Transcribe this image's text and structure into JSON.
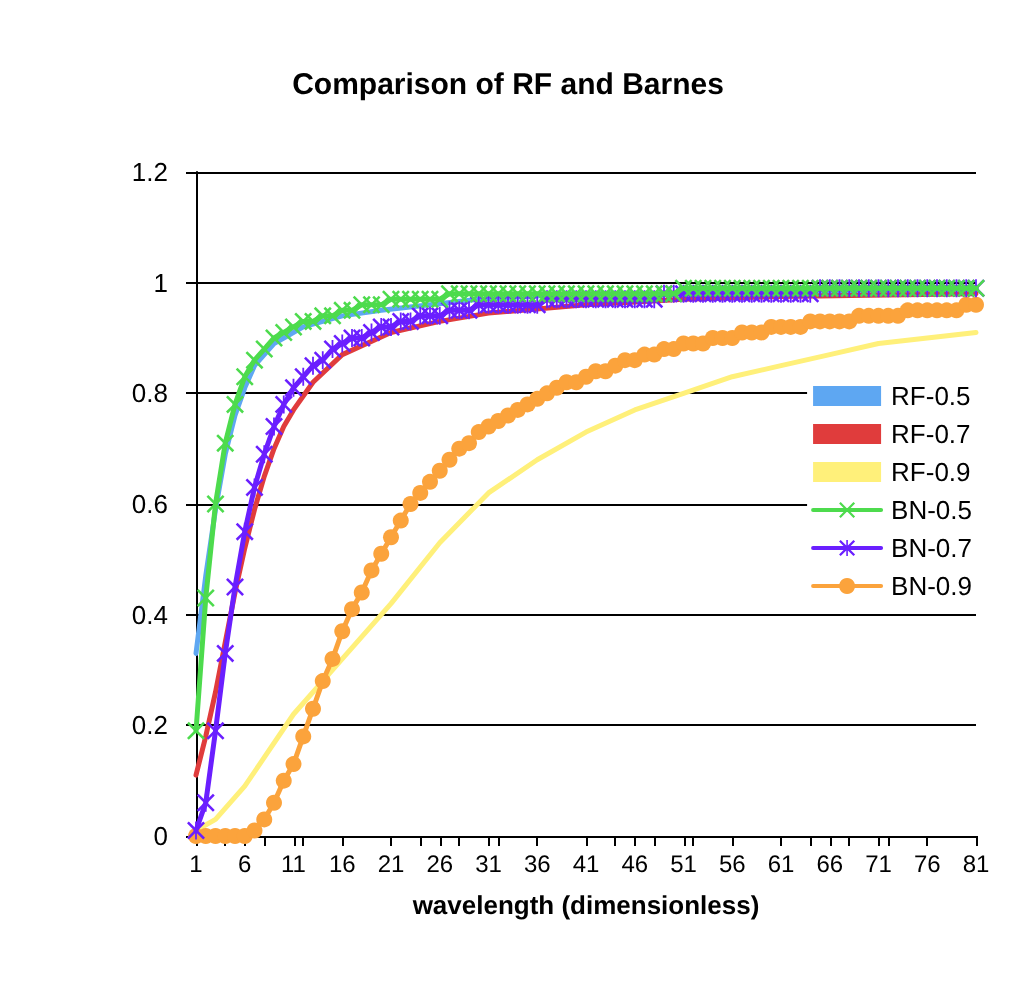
{
  "chart_data": {
    "type": "line",
    "title": "Comparison of RF and Barnes",
    "xlabel": "wavelength (dimensionless)",
    "xlim": [
      1,
      81
    ],
    "xticks": [
      1,
      6,
      11,
      16,
      21,
      26,
      31,
      36,
      41,
      46,
      51,
      56,
      61,
      66,
      71,
      76,
      81
    ],
    "ylim": [
      0,
      1.2
    ],
    "yticks": [
      0,
      0.2,
      0.4,
      0.6,
      0.8,
      1,
      1.2
    ],
    "grid": "y",
    "legend": "right",
    "line_style": "solid",
    "series": [
      {
        "name": "RF-0.5",
        "color": "#5ea7f2",
        "marker": "none",
        "x": [
          1,
          2,
          3,
          4,
          5,
          6,
          7,
          8,
          9,
          10,
          12,
          14,
          16,
          20,
          25,
          30,
          40,
          60,
          81
        ],
        "values": [
          0.33,
          0.47,
          0.59,
          0.69,
          0.76,
          0.81,
          0.85,
          0.87,
          0.89,
          0.9,
          0.92,
          0.93,
          0.94,
          0.95,
          0.96,
          0.97,
          0.98,
          0.98,
          0.99
        ]
      },
      {
        "name": "RF-0.7",
        "color": "#e03c3c",
        "marker": "none",
        "x": [
          1,
          2,
          3,
          4,
          5,
          6,
          7,
          8,
          9,
          10,
          11,
          13,
          16,
          21,
          26,
          31,
          41,
          51,
          61,
          81
        ],
        "values": [
          0.11,
          0.18,
          0.26,
          0.35,
          0.44,
          0.52,
          0.59,
          0.65,
          0.7,
          0.74,
          0.77,
          0.82,
          0.87,
          0.91,
          0.93,
          0.945,
          0.96,
          0.97,
          0.975,
          0.98
        ]
      },
      {
        "name": "RF-0.9",
        "color": "#fff07a",
        "marker": "none",
        "x": [
          1,
          3,
          6,
          11,
          16,
          21,
          26,
          31,
          36,
          41,
          46,
          51,
          56,
          61,
          66,
          71,
          76,
          81
        ],
        "values": [
          0.01,
          0.03,
          0.09,
          0.22,
          0.32,
          0.42,
          0.53,
          0.62,
          0.68,
          0.73,
          0.77,
          0.8,
          0.83,
          0.85,
          0.87,
          0.89,
          0.9,
          0.91
        ]
      },
      {
        "name": "BN-0.5",
        "color": "#4ddb4d",
        "marker": "cross",
        "x": [
          1,
          2,
          3,
          4,
          5,
          6,
          7,
          8,
          9,
          10,
          11,
          12,
          13,
          14,
          15,
          16,
          17,
          18,
          19,
          20,
          21,
          22,
          23,
          24,
          25,
          26,
          27,
          28,
          29,
          30,
          31,
          32,
          33,
          34,
          35,
          36,
          37,
          38,
          39,
          40,
          41,
          42,
          43,
          44,
          45,
          46,
          47,
          48,
          49,
          50,
          51,
          52,
          53,
          54,
          55,
          56,
          57,
          58,
          59,
          60,
          61,
          62,
          63,
          64,
          65,
          66,
          67,
          68,
          69,
          70,
          71,
          72,
          73,
          74,
          75,
          76,
          77,
          78,
          79,
          80,
          81
        ],
        "values": [
          0.19,
          0.43,
          0.6,
          0.71,
          0.78,
          0.83,
          0.86,
          0.88,
          0.9,
          0.91,
          0.92,
          0.93,
          0.93,
          0.94,
          0.94,
          0.95,
          0.95,
          0.96,
          0.96,
          0.96,
          0.97,
          0.97,
          0.97,
          0.97,
          0.97,
          0.97,
          0.98,
          0.98,
          0.98,
          0.98,
          0.98,
          0.98,
          0.98,
          0.98,
          0.98,
          0.98,
          0.98,
          0.98,
          0.98,
          0.98,
          0.98,
          0.98,
          0.98,
          0.98,
          0.98,
          0.98,
          0.98,
          0.98,
          0.98,
          0.98,
          0.99,
          0.99,
          0.99,
          0.99,
          0.99,
          0.99,
          0.99,
          0.99,
          0.99,
          0.99,
          0.99,
          0.99,
          0.99,
          0.99,
          0.99,
          0.99,
          0.99,
          0.99,
          0.99,
          0.99,
          0.99,
          0.99,
          0.99,
          0.99,
          0.99,
          0.99,
          0.99,
          0.99,
          0.99,
          0.99,
          0.99
        ]
      },
      {
        "name": "BN-0.7",
        "color": "#6a1fff",
        "marker": "star",
        "x": [
          1,
          2,
          3,
          4,
          5,
          6,
          7,
          8,
          9,
          10,
          11,
          12,
          13,
          14,
          15,
          16,
          17,
          18,
          19,
          20,
          21,
          22,
          23,
          24,
          25,
          26,
          27,
          28,
          29,
          30,
          31,
          32,
          33,
          34,
          35,
          36,
          37,
          38,
          39,
          40,
          41,
          42,
          43,
          44,
          45,
          46,
          47,
          48,
          49,
          50,
          51,
          52,
          53,
          54,
          55,
          56,
          57,
          58,
          59,
          60,
          61,
          62,
          63,
          64,
          65,
          66,
          67,
          68,
          69,
          70,
          71,
          72,
          73,
          74,
          75,
          76,
          77,
          78,
          79,
          80,
          81
        ],
        "values": [
          0.01,
          0.06,
          0.19,
          0.33,
          0.45,
          0.55,
          0.63,
          0.69,
          0.74,
          0.78,
          0.81,
          0.83,
          0.85,
          0.86,
          0.88,
          0.89,
          0.9,
          0.9,
          0.91,
          0.92,
          0.92,
          0.93,
          0.93,
          0.94,
          0.94,
          0.94,
          0.95,
          0.95,
          0.95,
          0.96,
          0.96,
          0.96,
          0.96,
          0.96,
          0.96,
          0.96,
          0.97,
          0.97,
          0.97,
          0.97,
          0.97,
          0.97,
          0.97,
          0.97,
          0.97,
          0.97,
          0.97,
          0.97,
          0.98,
          0.98,
          0.98,
          0.98,
          0.98,
          0.98,
          0.98,
          0.98,
          0.98,
          0.98,
          0.98,
          0.98,
          0.98,
          0.98,
          0.98,
          0.98,
          0.99,
          0.99,
          0.99,
          0.99,
          0.99,
          0.99,
          0.99,
          0.99,
          0.99,
          0.99,
          0.99,
          0.99,
          0.99,
          0.99,
          0.99,
          0.99,
          0.99
        ]
      },
      {
        "name": "BN-0.9",
        "color": "#fba33c",
        "marker": "circle",
        "x": [
          1,
          2,
          3,
          4,
          5,
          6,
          7,
          8,
          9,
          10,
          11,
          12,
          13,
          14,
          15,
          16,
          17,
          18,
          19,
          20,
          21,
          22,
          23,
          24,
          25,
          26,
          27,
          28,
          29,
          30,
          31,
          32,
          33,
          34,
          35,
          36,
          37,
          38,
          39,
          40,
          41,
          42,
          43,
          44,
          45,
          46,
          47,
          48,
          49,
          50,
          51,
          52,
          53,
          54,
          55,
          56,
          57,
          58,
          59,
          60,
          61,
          62,
          63,
          64,
          65,
          66,
          67,
          68,
          69,
          70,
          71,
          72,
          73,
          74,
          75,
          76,
          77,
          78,
          79,
          80,
          81
        ],
        "values": [
          0,
          0,
          0,
          0,
          0,
          0,
          0.01,
          0.03,
          0.06,
          0.1,
          0.13,
          0.18,
          0.23,
          0.28,
          0.32,
          0.37,
          0.41,
          0.44,
          0.48,
          0.51,
          0.54,
          0.57,
          0.6,
          0.62,
          0.64,
          0.66,
          0.68,
          0.7,
          0.71,
          0.73,
          0.74,
          0.75,
          0.76,
          0.77,
          0.78,
          0.79,
          0.8,
          0.81,
          0.82,
          0.82,
          0.83,
          0.84,
          0.84,
          0.85,
          0.86,
          0.86,
          0.87,
          0.87,
          0.88,
          0.88,
          0.89,
          0.89,
          0.89,
          0.9,
          0.9,
          0.9,
          0.91,
          0.91,
          0.91,
          0.92,
          0.92,
          0.92,
          0.92,
          0.93,
          0.93,
          0.93,
          0.93,
          0.93,
          0.94,
          0.94,
          0.94,
          0.94,
          0.94,
          0.95,
          0.95,
          0.95,
          0.95,
          0.95,
          0.95,
          0.96,
          0.96
        ]
      }
    ]
  }
}
